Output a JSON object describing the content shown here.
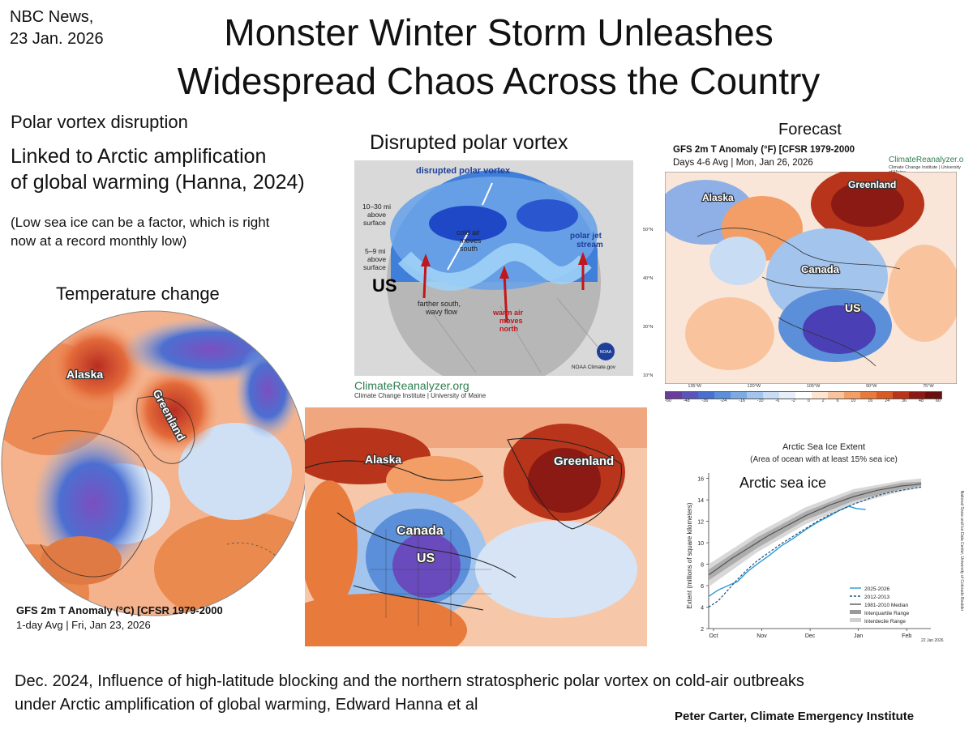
{
  "header": {
    "source_line1": "NBC News,",
    "source_line2": "23 Jan. 2026",
    "title_line1": "Monster Winter Storm Unleashes",
    "title_line2": "Widespread Chaos Across the Country"
  },
  "left_text": {
    "heading": "Polar vortex disruption",
    "linked_line1": "Linked to Arctic amplification",
    "linked_line2": "of global warming (Hanna, 2024)",
    "note_line1": "(Low sea ice can be a factor, which is right",
    "note_line2": "now at a record monthly low)"
  },
  "temperature_panel": {
    "heading": "Temperature change",
    "label_alaska": "Alaska",
    "label_greenland": "Greenland",
    "caption_title": "GFS 2m T Anomaly (°C) [CFSR 1979-2000",
    "caption_sub": "1-day Avg | Fri, Jan 23, 2026"
  },
  "vortex_panel": {
    "heading": "Disrupted polar vortex",
    "diagram_title": "disrupted polar vortex",
    "alt1_line1": "10–30 mi",
    "alt1_line2": "above",
    "alt1_line3": "surface",
    "alt2_line1": "5–9 mi",
    "alt2_line2": "above",
    "alt2_line3": "surface",
    "cold_air_line1": "cold air",
    "cold_air_line2": "moves",
    "cold_air_line3": "south",
    "jet_line1": "polar jet",
    "jet_line2": "stream",
    "us_label": "US",
    "farther_line1": "farther south,",
    "farther_line2": "wavy flow",
    "warm_line1": "warm air",
    "warm_line2": "moves",
    "warm_line3": "north",
    "noaa": "NOAA Climate.gov",
    "noaa_badge": "NOAA"
  },
  "reanalyzer_logo": {
    "name": "ClimateReanalyzer.org",
    "sub": "Climate Change Institute | University of Maine"
  },
  "forecast_panel": {
    "heading": "Forecast",
    "title": "GFS 2m T Anomaly (°F) [CFSR 1979-2000",
    "subtitle": "Days 4-6 Avg | Mon, Jan 26, 2026",
    "logo_name": "ClimateReanalyzer.org",
    "logo_sub": "Climate Change Institute | University of Maine",
    "label_alaska": "Alaska",
    "label_greenland": "Greenland",
    "label_canada": "Canada",
    "label_us": "US",
    "lat_labels": [
      "50°N",
      "40°N",
      "30°N",
      "10°N"
    ],
    "lon_labels": [
      "135°W",
      "120°W",
      "105°W",
      "90°W",
      "75°W"
    ],
    "colorbar_ticks": [
      "-60",
      "-48",
      "-36",
      "-24",
      "-16",
      "-10",
      "-6",
      "-2",
      "0",
      "2",
      "6",
      "10",
      "16",
      "24",
      "36",
      "48",
      "60"
    ],
    "colorbar_colors": [
      "#6a3d9a",
      "#5a55b8",
      "#4a6fcf",
      "#5b8fd9",
      "#7eaae2",
      "#a3c4ec",
      "#c8dcf3",
      "#e6eef9",
      "#ffffff",
      "#fde4cf",
      "#f9c49d",
      "#f29e66",
      "#e87a3b",
      "#d85a24",
      "#b8341a",
      "#8c1a14",
      "#6a0f0f"
    ]
  },
  "zoom_panel": {
    "label_alaska": "Alaska",
    "label_greenland": "Greenland",
    "label_canada": "Canada",
    "label_us": "US"
  },
  "seaice_panel": {
    "title": "Arctic Sea Ice Extent",
    "subtitle": "(Area of ocean with at least 15% sea ice)",
    "overlay_label": "Arctic sea ice",
    "ylabel": "Extent (millions of square kilometers)",
    "right_credit": "National Snow and Ice Data Center, University of Colorado Boulder",
    "date_note": "22 Jan 2026",
    "y_ticks": [
      "2",
      "4",
      "6",
      "8",
      "10",
      "12",
      "14",
      "16"
    ],
    "x_ticks": [
      "Oct",
      "Nov",
      "Dec",
      "Jan",
      "Feb"
    ],
    "legend": [
      {
        "label": "2025-2026",
        "color": "#2a9ad8",
        "style": "solid"
      },
      {
        "label": "2012-2013",
        "color": "#1f4e79",
        "style": "dashed"
      },
      {
        "label": "1981-2010 Median",
        "color": "#555555",
        "style": "solid"
      },
      {
        "label": "Interquartile Range",
        "color": "#9a9a9a",
        "style": "band"
      },
      {
        "label": "Interdecile Range",
        "color": "#cfcfcf",
        "style": "band"
      }
    ]
  },
  "footer": {
    "citation_line1": "Dec. 2024, Influence of high-latitude blocking and the northern stratospheric polar vortex on cold-air outbreaks",
    "citation_line2": "under Arctic amplification of global warming, Edward Hanna et al",
    "author": "Peter Carter, Climate Emergency Institute"
  },
  "chart_data": {
    "type": "line",
    "title": "Arctic Sea Ice Extent",
    "subtitle": "(Area of ocean with at least 15% sea ice)",
    "ylabel": "Extent (millions of square kilometers)",
    "xlabel": "",
    "x_categories": [
      "Oct",
      "Nov",
      "Dec",
      "Jan",
      "Feb"
    ],
    "ylim": [
      2,
      16.5
    ],
    "series": [
      {
        "name": "2025-2026",
        "x": [
          0,
          0.2,
          0.4,
          0.6,
          0.8,
          1.0,
          1.25,
          1.5,
          1.75,
          2.0,
          2.25,
          2.5,
          2.7,
          2.9,
          3.05,
          3.25
        ],
        "values": [
          5.0,
          5.6,
          6.0,
          6.4,
          7.3,
          8.0,
          8.8,
          9.7,
          10.4,
          11.2,
          11.9,
          12.5,
          13.0,
          13.4,
          13.2,
          13.1
        ]
      },
      {
        "name": "2012-2013",
        "x": [
          0,
          0.2,
          0.4,
          0.6,
          0.8,
          1.0,
          1.25,
          1.5,
          1.75,
          2.0,
          2.25,
          2.5,
          2.75,
          3.0,
          3.25,
          3.5,
          3.75,
          4.0,
          4.25,
          4.4
        ],
        "values": [
          4.0,
          4.6,
          5.6,
          6.6,
          7.5,
          8.3,
          9.1,
          9.9,
          10.6,
          11.3,
          12.0,
          12.6,
          13.1,
          13.6,
          14.0,
          14.4,
          14.7,
          14.9,
          15.1,
          15.2
        ]
      },
      {
        "name": "1981-2010 Median",
        "x": [
          0,
          0.25,
          0.5,
          0.75,
          1.0,
          1.25,
          1.5,
          1.75,
          2.0,
          2.25,
          2.5,
          2.75,
          3.0,
          3.25,
          3.5,
          3.75,
          4.0,
          4.25,
          4.4
        ],
        "values": [
          7.0,
          7.8,
          8.6,
          9.3,
          10.0,
          10.7,
          11.3,
          11.9,
          12.5,
          13.0,
          13.5,
          13.9,
          14.3,
          14.6,
          14.9,
          15.1,
          15.3,
          15.4,
          15.5
        ]
      }
    ],
    "bands": [
      {
        "name": "Interdecile Range",
        "color": "#d4d4d4",
        "x": [
          0,
          1,
          2,
          3,
          4,
          4.4
        ],
        "low": [
          5.9,
          9.1,
          11.7,
          13.6,
          14.8,
          15.1
        ],
        "high": [
          8.0,
          10.9,
          13.3,
          15.0,
          15.8,
          16.0
        ]
      },
      {
        "name": "Interquartile Range",
        "color": "#a8a8a8",
        "x": [
          0,
          1,
          2,
          3,
          4,
          4.4
        ],
        "low": [
          6.5,
          9.5,
          12.1,
          13.9,
          15.0,
          15.3
        ],
        "high": [
          7.5,
          10.5,
          12.9,
          14.7,
          15.6,
          15.7
        ]
      }
    ],
    "legend_position": "bottom-right",
    "grid": false
  }
}
